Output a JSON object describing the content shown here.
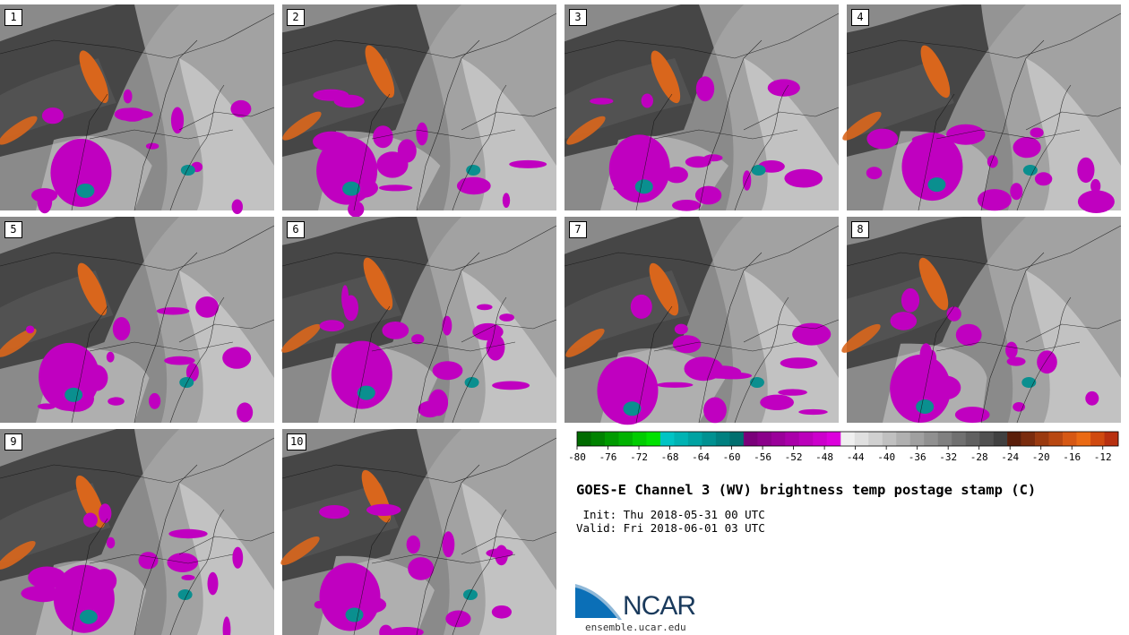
{
  "panels": [
    {
      "label": "1"
    },
    {
      "label": "2"
    },
    {
      "label": "3"
    },
    {
      "label": "4"
    },
    {
      "label": "5"
    },
    {
      "label": "6"
    },
    {
      "label": "7"
    },
    {
      "label": "8"
    },
    {
      "label": "9"
    },
    {
      "label": "10"
    }
  ],
  "colorbar": {
    "ticks": [
      "-80",
      "-76",
      "-72",
      "-68",
      "-64",
      "-60",
      "-56",
      "-52",
      "-48",
      "-44",
      "-40",
      "-36",
      "-32",
      "-28",
      "-24",
      "-20",
      "-16",
      "-12"
    ],
    "colors": [
      "#006b00",
      "#008200",
      "#009a00",
      "#00b200",
      "#00cc00",
      "#00e100",
      "#00c4c4",
      "#00b3b3",
      "#00a2a2",
      "#009191",
      "#008080",
      "#006f6f",
      "#7a007a",
      "#8a008a",
      "#9a009a",
      "#aa00aa",
      "#bb00bb",
      "#cc00cc",
      "#dc00dc",
      "#f0f0f0",
      "#e0e0e0",
      "#d0d0d0",
      "#c0c0c0",
      "#b0b0b0",
      "#a0a0a0",
      "#909090",
      "#808080",
      "#707070",
      "#606060",
      "#505050",
      "#404040",
      "#5a1e0a",
      "#7a2c0e",
      "#9a3a10",
      "#b84812",
      "#d65814",
      "#ea6a14",
      "#d04a10",
      "#b83010"
    ]
  },
  "title": "GOES-E Channel 3 (WV) brightness temp postage stamp (C)",
  "init": " Init: Thu 2018-05-31 00 UTC",
  "valid": "Valid: Fri 2018-06-01 03 UTC",
  "logo": {
    "text": "NCAR",
    "url": "ensemble.ucar.edu"
  },
  "palette": {
    "orange": "#d9661c",
    "magenta": "#c000c0",
    "teal": "#0a8f8f",
    "dark": "#3a3a3a",
    "light": "#d0d0d0"
  }
}
